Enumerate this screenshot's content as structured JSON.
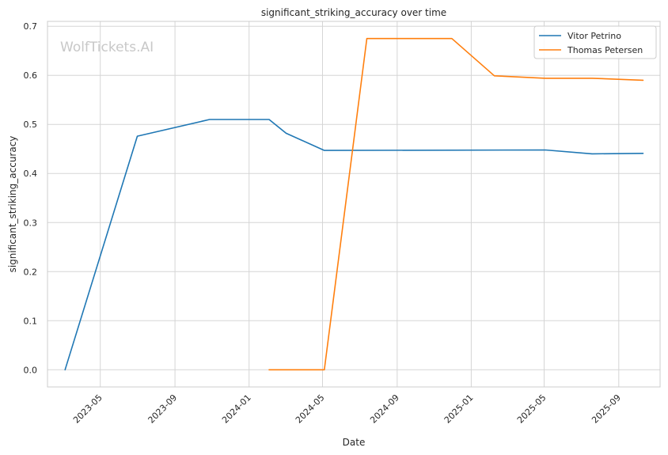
{
  "chart_data": {
    "type": "line",
    "title": "significant_striking_accuracy over time",
    "xlabel": "Date",
    "ylabel": "significant_striking_accuracy",
    "watermark": "WolfTickets.AI",
    "x_range": [
      "2023-02-03",
      "2025-11-08"
    ],
    "ylim": [
      -0.035,
      0.71
    ],
    "x_ticks": [
      "2023-05-01",
      "2023-09-01",
      "2024-01-01",
      "2024-05-01",
      "2024-09-01",
      "2025-01-01",
      "2025-05-01",
      "2025-09-01"
    ],
    "x_tick_labels": [
      "2023-05",
      "2023-09",
      "2024-01",
      "2024-05",
      "2024-09",
      "2025-01",
      "2025-05",
      "2025-09"
    ],
    "y_ticks": [
      0.0,
      0.1,
      0.2,
      0.3,
      0.4,
      0.5,
      0.6,
      0.7
    ],
    "y_tick_labels": [
      "0.0",
      "0.1",
      "0.2",
      "0.3",
      "0.4",
      "0.5",
      "0.6",
      "0.7"
    ],
    "grid": true,
    "legend_position": "top-right",
    "series": [
      {
        "name": "Vitor Petrino",
        "color": "#1f77b4",
        "points": [
          [
            "2023-03-04",
            0.0
          ],
          [
            "2023-07-01",
            0.476
          ],
          [
            "2023-10-28",
            0.51
          ],
          [
            "2024-02-03",
            0.51
          ],
          [
            "2024-03-02",
            0.482
          ],
          [
            "2024-05-04",
            0.447
          ],
          [
            "2025-05-03",
            0.448
          ],
          [
            "2025-07-19",
            0.44
          ],
          [
            "2025-10-11",
            0.441
          ]
        ]
      },
      {
        "name": "Thomas Petersen",
        "color": "#ff7f0e",
        "points": [
          [
            "2024-02-03",
            0.0
          ],
          [
            "2024-05-04",
            0.0
          ],
          [
            "2024-07-13",
            0.675
          ],
          [
            "2024-11-30",
            0.675
          ],
          [
            "2025-02-08",
            0.599
          ],
          [
            "2025-05-03",
            0.594
          ],
          [
            "2025-07-19",
            0.594
          ],
          [
            "2025-10-11",
            0.59
          ]
        ]
      }
    ]
  }
}
